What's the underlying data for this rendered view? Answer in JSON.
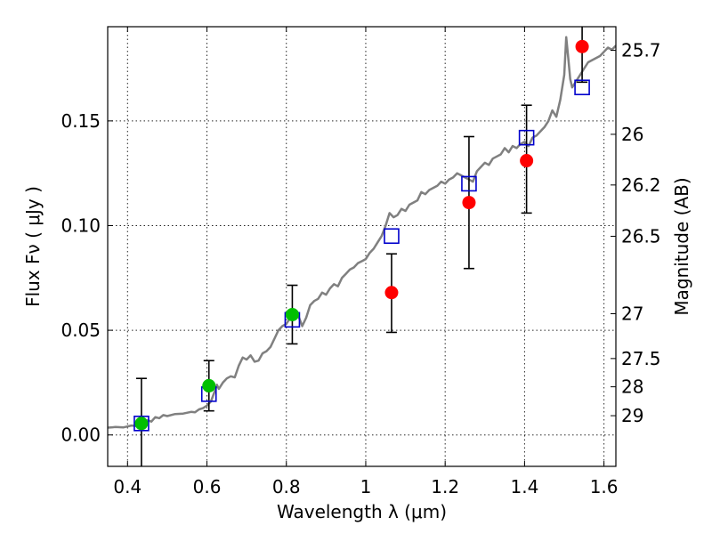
{
  "chart_data": {
    "type": "scatter",
    "title": "",
    "xlabel": "Wavelength  λ (μm)",
    "ylabel": "Flux  Fν ( μJy )",
    "y2label": "Magnitude (AB)",
    "xlim": [
      0.35,
      1.63
    ],
    "ylim": [
      -0.015,
      0.195
    ],
    "grid": true,
    "x_ticks": [
      {
        "value": 0.4,
        "label": "0.4"
      },
      {
        "value": 0.6,
        "label": "0.6"
      },
      {
        "value": 0.8,
        "label": "0.8"
      },
      {
        "value": 1.0,
        "label": "1"
      },
      {
        "value": 1.2,
        "label": "1.2"
      },
      {
        "value": 1.4,
        "label": "1.4"
      },
      {
        "value": 1.6,
        "label": "1.6"
      }
    ],
    "y_ticks": [
      {
        "value": 0.0,
        "label": "0.00"
      },
      {
        "value": 0.05,
        "label": "0.05"
      },
      {
        "value": 0.1,
        "label": "0.10"
      },
      {
        "value": 0.15,
        "label": "0.15"
      }
    ],
    "y2_ticks": [
      {
        "flux": 0.1837,
        "label": "25.7"
      },
      {
        "flux": 0.1436,
        "label": "26"
      },
      {
        "flux": 0.1194,
        "label": "26.2"
      },
      {
        "flux": 0.0949,
        "label": "26.5"
      },
      {
        "flux": 0.0579,
        "label": "27"
      },
      {
        "flux": 0.0365,
        "label": "27.5"
      },
      {
        "flux": 0.023,
        "label": "28"
      },
      {
        "flux": 0.0092,
        "label": "29"
      }
    ],
    "series": [
      {
        "kind": "line",
        "color": "#808080",
        "points": [
          [
            0.35,
            0.0035
          ],
          [
            0.37,
            0.0038
          ],
          [
            0.39,
            0.0036
          ],
          [
            0.41,
            0.0045
          ],
          [
            0.42,
            0.0043
          ],
          [
            0.43,
            0.0058
          ],
          [
            0.44,
            0.0054
          ],
          [
            0.45,
            0.007
          ],
          [
            0.46,
            0.0064
          ],
          [
            0.47,
            0.0085
          ],
          [
            0.48,
            0.008
          ],
          [
            0.49,
            0.0095
          ],
          [
            0.5,
            0.009
          ],
          [
            0.52,
            0.01
          ],
          [
            0.54,
            0.0102
          ],
          [
            0.56,
            0.011
          ],
          [
            0.57,
            0.0108
          ],
          [
            0.58,
            0.0122
          ],
          [
            0.59,
            0.0128
          ],
          [
            0.6,
            0.014
          ],
          [
            0.61,
            0.016
          ],
          [
            0.62,
            0.021
          ],
          [
            0.625,
            0.024
          ],
          [
            0.63,
            0.022
          ],
          [
            0.64,
            0.025
          ],
          [
            0.65,
            0.027
          ],
          [
            0.66,
            0.028
          ],
          [
            0.67,
            0.0275
          ],
          [
            0.68,
            0.033
          ],
          [
            0.69,
            0.037
          ],
          [
            0.7,
            0.036
          ],
          [
            0.71,
            0.038
          ],
          [
            0.72,
            0.035
          ],
          [
            0.73,
            0.0355
          ],
          [
            0.74,
            0.039
          ],
          [
            0.75,
            0.04
          ],
          [
            0.76,
            0.042
          ],
          [
            0.77,
            0.046
          ],
          [
            0.78,
            0.05
          ],
          [
            0.79,
            0.052
          ],
          [
            0.8,
            0.053
          ],
          [
            0.81,
            0.056
          ],
          [
            0.82,
            0.058
          ],
          [
            0.83,
            0.057
          ],
          [
            0.84,
            0.052
          ],
          [
            0.85,
            0.056
          ],
          [
            0.86,
            0.062
          ],
          [
            0.87,
            0.064
          ],
          [
            0.88,
            0.065
          ],
          [
            0.89,
            0.068
          ],
          [
            0.9,
            0.067
          ],
          [
            0.91,
            0.07
          ],
          [
            0.92,
            0.072
          ],
          [
            0.93,
            0.071
          ],
          [
            0.94,
            0.075
          ],
          [
            0.95,
            0.077
          ],
          [
            0.96,
            0.079
          ],
          [
            0.97,
            0.08
          ],
          [
            0.98,
            0.082
          ],
          [
            0.99,
            0.083
          ],
          [
            1.0,
            0.084
          ],
          [
            1.01,
            0.087
          ],
          [
            1.02,
            0.089
          ],
          [
            1.03,
            0.092
          ],
          [
            1.04,
            0.095
          ],
          [
            1.05,
            0.1
          ],
          [
            1.06,
            0.106
          ],
          [
            1.07,
            0.104
          ],
          [
            1.08,
            0.105
          ],
          [
            1.09,
            0.108
          ],
          [
            1.1,
            0.107
          ],
          [
            1.11,
            0.11
          ],
          [
            1.12,
            0.111
          ],
          [
            1.13,
            0.112
          ],
          [
            1.14,
            0.116
          ],
          [
            1.15,
            0.115
          ],
          [
            1.16,
            0.117
          ],
          [
            1.17,
            0.118
          ],
          [
            1.18,
            0.119
          ],
          [
            1.19,
            0.121
          ],
          [
            1.2,
            0.12
          ],
          [
            1.21,
            0.122
          ],
          [
            1.22,
            0.123
          ],
          [
            1.23,
            0.125
          ],
          [
            1.24,
            0.124
          ],
          [
            1.25,
            0.123
          ],
          [
            1.26,
            0.122
          ],
          [
            1.27,
            0.121
          ],
          [
            1.28,
            0.126
          ],
          [
            1.29,
            0.128
          ],
          [
            1.3,
            0.13
          ],
          [
            1.31,
            0.129
          ],
          [
            1.32,
            0.132
          ],
          [
            1.33,
            0.133
          ],
          [
            1.34,
            0.134
          ],
          [
            1.35,
            0.137
          ],
          [
            1.36,
            0.135
          ],
          [
            1.37,
            0.138
          ],
          [
            1.38,
            0.137
          ],
          [
            1.39,
            0.139
          ],
          [
            1.4,
            0.14
          ],
          [
            1.41,
            0.138
          ],
          [
            1.42,
            0.142
          ],
          [
            1.43,
            0.143
          ],
          [
            1.44,
            0.145
          ],
          [
            1.45,
            0.147
          ],
          [
            1.46,
            0.15
          ],
          [
            1.47,
            0.155
          ],
          [
            1.48,
            0.152
          ],
          [
            1.49,
            0.16
          ],
          [
            1.5,
            0.172
          ],
          [
            1.505,
            0.19
          ],
          [
            1.51,
            0.18
          ],
          [
            1.515,
            0.17
          ],
          [
            1.52,
            0.166
          ],
          [
            1.53,
            0.169
          ],
          [
            1.54,
            0.172
          ],
          [
            1.55,
            0.175
          ],
          [
            1.56,
            0.178
          ],
          [
            1.57,
            0.179
          ],
          [
            1.58,
            0.18
          ],
          [
            1.59,
            0.181
          ],
          [
            1.6,
            0.183
          ],
          [
            1.61,
            0.185
          ],
          [
            1.62,
            0.184
          ],
          [
            1.63,
            0.186
          ]
        ]
      },
      {
        "kind": "open-square",
        "color": "#0000cc",
        "points": [
          [
            0.435,
            0.0055
          ],
          [
            0.605,
            0.0195
          ],
          [
            0.815,
            0.055
          ],
          [
            1.065,
            0.095
          ],
          [
            1.26,
            0.12
          ],
          [
            1.405,
            0.142
          ],
          [
            1.545,
            0.166
          ]
        ]
      },
      {
        "kind": "filled-circle",
        "color": "#00c000",
        "points": [
          [
            0.435,
            0.0055
          ],
          [
            0.605,
            0.0235
          ],
          [
            0.815,
            0.0575
          ]
        ]
      },
      {
        "kind": "filled-circle",
        "color": "#ff0000",
        "points": [
          [
            1.065,
            0.068
          ],
          [
            1.26,
            0.111
          ],
          [
            1.405,
            0.131
          ],
          [
            1.545,
            0.1855
          ]
        ]
      }
    ],
    "error_bars": [
      {
        "x": 0.435,
        "low": -0.016,
        "high": 0.027
      },
      {
        "x": 0.605,
        "low": 0.0115,
        "high": 0.0355
      },
      {
        "x": 0.815,
        "low": 0.0435,
        "high": 0.0715
      },
      {
        "x": 1.065,
        "low": 0.049,
        "high": 0.0865
      },
      {
        "x": 1.26,
        "low": 0.0795,
        "high": 0.1425
      },
      {
        "x": 1.405,
        "low": 0.106,
        "high": 0.1575
      },
      {
        "x": 1.545,
        "low": 0.1685,
        "high": 0.2
      }
    ]
  }
}
